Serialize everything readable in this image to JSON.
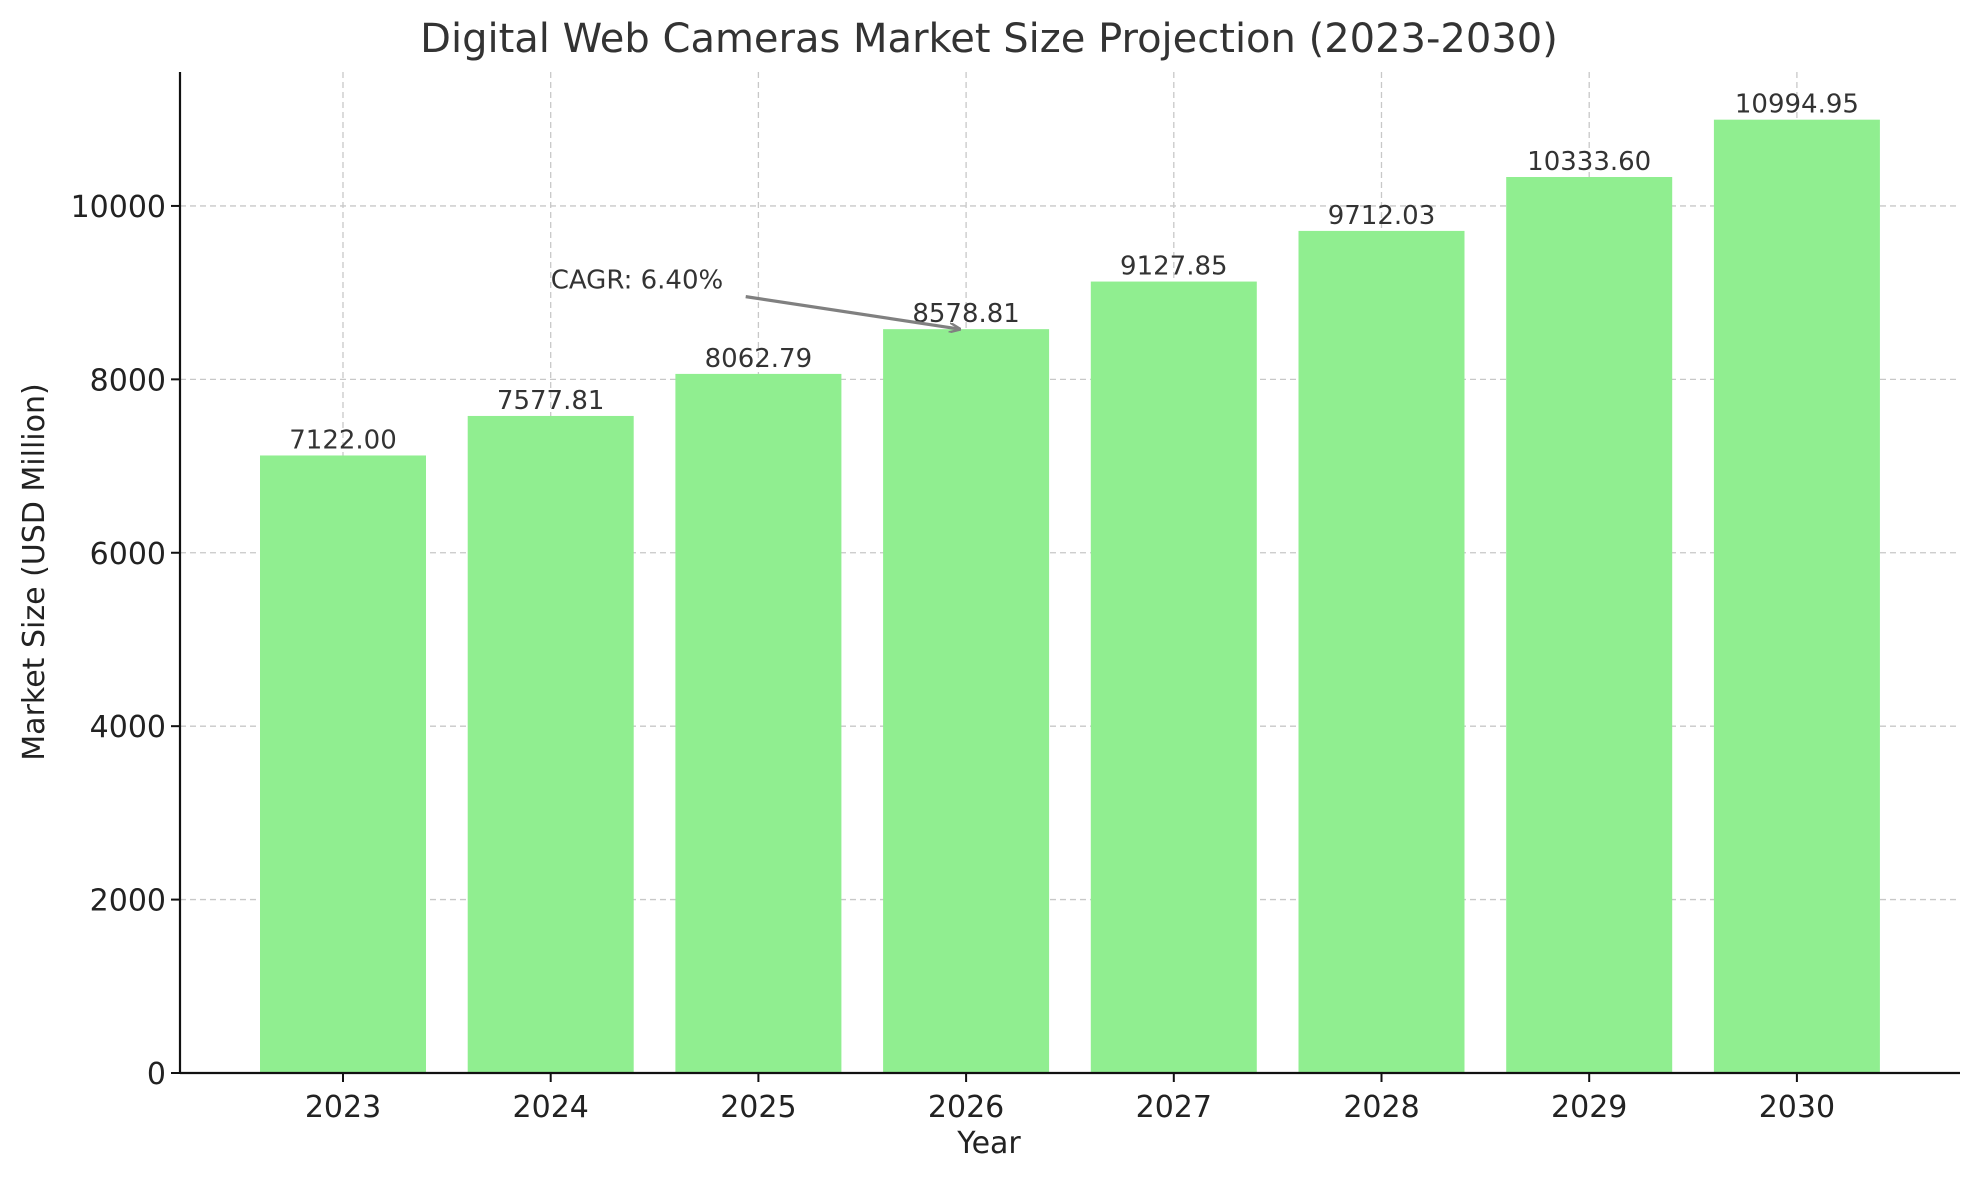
{
  "chart_data": {
    "type": "bar",
    "title": "Digital Web Cameras Market Size Projection (2023-2030)",
    "xlabel": "Year",
    "ylabel": "Market Size (USD Million)",
    "categories": [
      "2023",
      "2024",
      "2025",
      "2026",
      "2027",
      "2028",
      "2029",
      "2030"
    ],
    "values": [
      7122.0,
      7577.81,
      8062.79,
      8578.81,
      9127.85,
      9712.03,
      10333.6,
      10994.95
    ],
    "value_labels": [
      "7122.00",
      "7577.81",
      "8062.79",
      "8578.81",
      "9127.85",
      "9712.03",
      "10333.60",
      "10994.95"
    ],
    "ylim": [
      0,
      11544.7
    ],
    "yticks": [
      0,
      2000,
      4000,
      6000,
      8000,
      10000
    ],
    "ytick_labels": [
      "0",
      "2000",
      "4000",
      "6000",
      "8000",
      "10000"
    ],
    "grid": true,
    "bar_color": "#90ee90",
    "annotation": {
      "text": "CAGR: 6.40%",
      "target_category": "2026",
      "target_value": 8578.81,
      "text_anchor_category": "2024",
      "text_anchor_value": 9150,
      "arrow_color": "#808080"
    }
  }
}
